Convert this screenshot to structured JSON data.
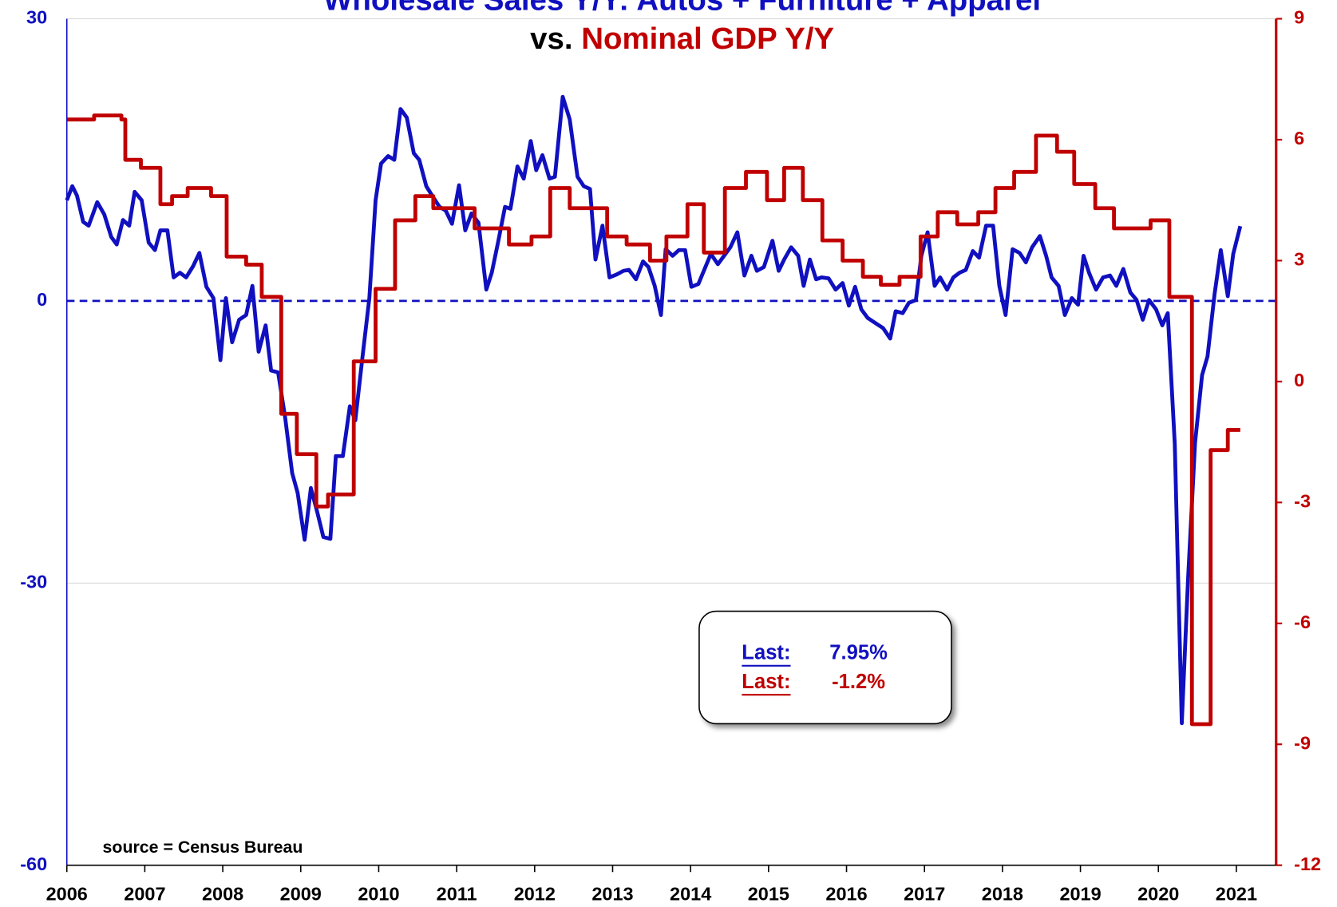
{
  "chart_data": {
    "type": "line",
    "title_vs": "vs.",
    "source": "source = Census Bureau",
    "xlim": [
      2006,
      2021.51
    ],
    "xticks": [
      2006,
      2007,
      2008,
      2009,
      2010,
      2011,
      2012,
      2013,
      2014,
      2015,
      2016,
      2017,
      2018,
      2019,
      2020,
      2021
    ],
    "ylim": [
      -60,
      30
    ],
    "yticks": [
      30,
      0,
      -30,
      -60
    ],
    "y2lim": [
      -12,
      9
    ],
    "y2ticks": [
      9,
      6,
      3,
      0,
      -3,
      -6,
      -9,
      -12
    ],
    "grid": true,
    "series": [
      {
        "name": "Wholesale Sales Y/Y: Autos + Furniture + Apparel",
        "color": "#1010c0",
        "axis": "y",
        "x": [
          2006.0,
          2006.07,
          2006.13,
          2006.21,
          2006.28,
          2006.39,
          2006.48,
          2006.57,
          2006.64,
          2006.72,
          2006.8,
          2006.87,
          2006.96,
          2007.05,
          2007.13,
          2007.2,
          2007.29,
          2007.37,
          2007.45,
          2007.53,
          2007.62,
          2007.7,
          2007.79,
          2007.88,
          2007.97,
          2008.04,
          2008.12,
          2008.21,
          2008.3,
          2008.38,
          2008.46,
          2008.55,
          2008.62,
          2008.71,
          2008.8,
          2008.89,
          2008.96,
          2009.05,
          2009.13,
          2009.21,
          2009.29,
          2009.38,
          2009.45,
          2009.54,
          2009.63,
          2009.7,
          2009.79,
          2009.88,
          2009.96,
          2010.03,
          2010.12,
          2010.2,
          2010.28,
          2010.36,
          2010.45,
          2010.52,
          2010.61,
          2010.7,
          2010.78,
          2010.86,
          2010.94,
          2011.03,
          2011.11,
          2011.19,
          2011.28,
          2011.38,
          2011.45,
          2011.53,
          2011.62,
          2011.69,
          2011.78,
          2011.86,
          2011.95,
          2012.02,
          2012.1,
          2012.19,
          2012.26,
          2012.36,
          2012.45,
          2012.55,
          2012.63,
          2012.71,
          2012.78,
          2012.87,
          2012.96,
          2013.05,
          2013.14,
          2013.21,
          2013.3,
          2013.39,
          2013.46,
          2013.54,
          2013.62,
          2013.68,
          2013.77,
          2013.85,
          2013.93,
          2014.01,
          2014.1,
          2014.17,
          2014.26,
          2014.35,
          2014.43,
          2014.51,
          2014.6,
          2014.69,
          2014.78,
          2014.85,
          2014.94,
          2015.05,
          2015.13,
          2015.2,
          2015.29,
          2015.38,
          2015.45,
          2015.53,
          2015.61,
          2015.68,
          2015.77,
          2015.86,
          2015.95,
          2016.03,
          2016.11,
          2016.19,
          2016.27,
          2016.36,
          2016.47,
          2016.56,
          2016.63,
          2016.72,
          2016.8,
          2016.89,
          2016.96,
          2017.04,
          2017.13,
          2017.2,
          2017.29,
          2017.37,
          2017.45,
          2017.53,
          2017.62,
          2017.7,
          2017.79,
          2017.88,
          2017.96,
          2018.04,
          2018.13,
          2018.22,
          2018.3,
          2018.38,
          2018.48,
          2018.56,
          2018.63,
          2018.72,
          2018.8,
          2018.89,
          2018.97,
          2019.04,
          2019.11,
          2019.2,
          2019.29,
          2019.38,
          2019.46,
          2019.55,
          2019.64,
          2019.72,
          2019.8,
          2019.88,
          2019.97,
          2020.05,
          2020.12,
          2020.21,
          2020.3,
          2020.38,
          2020.47,
          2020.56,
          2020.63,
          2020.72,
          2020.8,
          2020.89,
          2020.96,
          2021.05
        ],
        "values": [
          10.7,
          12.2,
          11.2,
          8.4,
          8.0,
          10.5,
          9.2,
          6.8,
          6.0,
          8.6,
          8.0,
          11.6,
          10.7,
          6.2,
          5.4,
          7.5,
          7.5,
          2.5,
          3.0,
          2.5,
          3.7,
          5.1,
          1.5,
          0.3,
          -6.3,
          0.3,
          -4.4,
          -2.0,
          -1.5,
          1.6,
          -5.4,
          -2.6,
          -7.4,
          -7.6,
          -12.4,
          -18.3,
          -20.4,
          -25.4,
          -19.9,
          -22.4,
          -25.1,
          -25.3,
          -16.5,
          -16.5,
          -11.2,
          -12.7,
          -6.1,
          0.3,
          10.7,
          14.6,
          15.4,
          15.0,
          20.4,
          19.5,
          15.7,
          15.0,
          12.2,
          11.0,
          10.0,
          9.6,
          8.2,
          12.3,
          7.5,
          9.3,
          8.3,
          1.2,
          3.0,
          6.2,
          10.0,
          9.8,
          14.3,
          13.0,
          17.0,
          13.9,
          15.5,
          13.0,
          13.2,
          21.7,
          19.3,
          13.2,
          12.2,
          11.9,
          4.4,
          8.0,
          2.5,
          2.8,
          3.2,
          3.3,
          2.3,
          4.2,
          3.6,
          1.6,
          -1.5,
          5.5,
          4.8,
          5.4,
          5.4,
          1.5,
          1.8,
          3.2,
          5.0,
          3.9,
          4.8,
          5.7,
          7.3,
          2.7,
          4.8,
          3.2,
          3.6,
          6.4,
          3.2,
          4.4,
          5.7,
          4.8,
          1.6,
          4.4,
          2.3,
          2.5,
          2.4,
          1.2,
          1.9,
          -0.5,
          1.5,
          -0.9,
          -1.8,
          -2.3,
          -2.9,
          -4.0,
          -1.1,
          -1.3,
          -0.2,
          0.1,
          4.8,
          7.3,
          1.6,
          2.5,
          1.2,
          2.5,
          3.0,
          3.3,
          5.3,
          4.6,
          8.0,
          8.0,
          1.6,
          -1.5,
          5.5,
          5.1,
          4.1,
          5.7,
          6.9,
          4.8,
          2.5,
          1.6,
          -1.5,
          0.3,
          -0.4,
          4.8,
          3.0,
          1.2,
          2.5,
          2.7,
          1.6,
          3.4,
          0.9,
          0.1,
          -2.0,
          0.1,
          -0.9,
          -2.6,
          -1.3,
          -15.2,
          -44.9,
          -29.6,
          -15.1,
          -7.9,
          -5.9,
          0.7,
          5.4,
          0.5,
          5.0,
          7.95
        ]
      },
      {
        "name": "Nominal GDP Y/Y",
        "color": "#c00000",
        "axis": "y2",
        "step": true,
        "x": [
          2006.0,
          2006.35,
          2006.7,
          2006.75,
          2006.95,
          2007.2,
          2007.35,
          2007.55,
          2007.85,
          2008.05,
          2008.3,
          2008.5,
          2008.75,
          2008.95,
          2009.2,
          2009.35,
          2009.68,
          2009.96,
          2010.21,
          2010.47,
          2010.7,
          2011.23,
          2011.67,
          2011.96,
          2012.2,
          2012.45,
          2012.93,
          2013.18,
          2013.48,
          2013.69,
          2013.96,
          2014.17,
          2014.44,
          2014.71,
          2014.98,
          2015.2,
          2015.44,
          2015.69,
          2015.95,
          2016.21,
          2016.44,
          2016.68,
          2016.95,
          2017.17,
          2017.42,
          2017.69,
          2017.91,
          2018.15,
          2018.43,
          2018.7,
          2018.92,
          2019.19,
          2019.43,
          2019.9,
          2020.14,
          2020.43,
          2020.67,
          2020.89,
          2021.05
        ],
        "values": [
          6.5,
          6.6,
          6.5,
          5.5,
          5.3,
          4.4,
          4.6,
          4.8,
          4.6,
          3.1,
          2.9,
          2.1,
          -0.8,
          -1.8,
          -3.1,
          -2.8,
          0.5,
          2.3,
          4.0,
          4.6,
          4.3,
          3.8,
          3.4,
          3.6,
          4.8,
          4.3,
          3.6,
          3.4,
          3.0,
          3.6,
          4.4,
          3.2,
          4.8,
          5.2,
          4.5,
          5.3,
          4.5,
          3.5,
          3.0,
          2.6,
          2.4,
          2.6,
          3.6,
          4.2,
          3.9,
          4.2,
          4.8,
          5.2,
          6.1,
          5.7,
          4.9,
          4.3,
          3.8,
          4.0,
          2.1,
          -8.5,
          -1.7,
          -1.2,
          -1.2
        ]
      }
    ],
    "annotations": [
      {
        "label": "Last:",
        "text": "7.95%",
        "color": "#1010c0"
      },
      {
        "label": "Last:",
        "text": "-1.2%",
        "color": "#c00000"
      }
    ]
  }
}
